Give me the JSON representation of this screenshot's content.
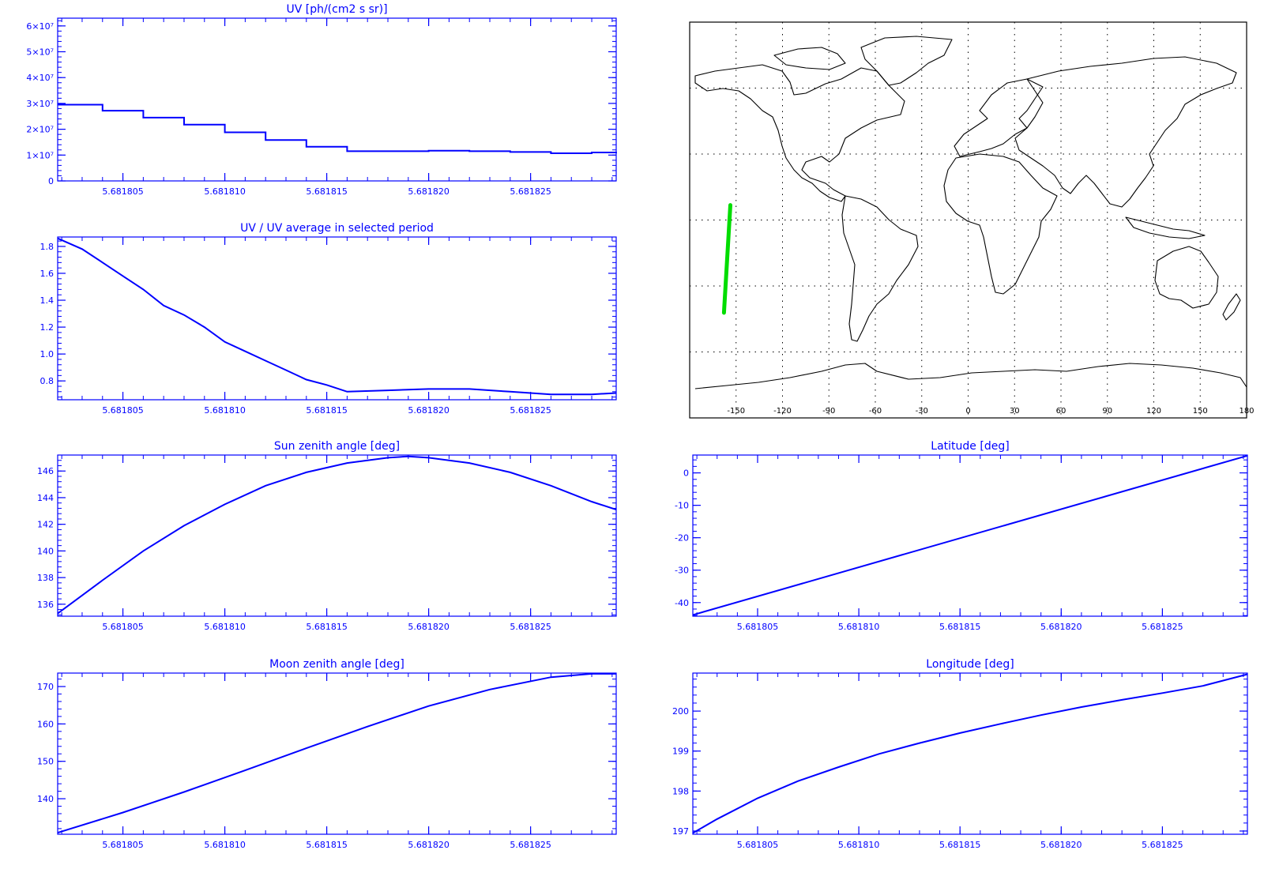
{
  "panels": [
    {
      "id": "uv",
      "title": "UV [ph/(cm2 s sr)]",
      "x_ticks": [
        "5.681805",
        "5.681810",
        "5.681815",
        "5.681820",
        "5.681825"
      ],
      "y_ticks": [
        "0",
        "1×10⁷",
        "2×10⁷",
        "3×10⁷",
        "4×10⁷",
        "5×10⁷",
        "6×10⁷"
      ]
    },
    {
      "id": "uv-ratio",
      "title": "UV / UV average in selected period",
      "x_ticks": [
        "5.681805",
        "5.681810",
        "5.681815",
        "5.681820",
        "5.681825"
      ],
      "y_ticks": [
        "0.8",
        "1.0",
        "1.2",
        "1.4",
        "1.6",
        "1.8"
      ]
    },
    {
      "id": "sun-zenith",
      "title": "Sun zenith angle [deg]",
      "x_ticks": [
        "5.681805",
        "5.681810",
        "5.681815",
        "5.681820",
        "5.681825"
      ],
      "y_ticks": [
        "136",
        "138",
        "140",
        "142",
        "144",
        "146"
      ]
    },
    {
      "id": "moon-zenith",
      "title": "Moon zenith angle [deg]",
      "x_ticks": [
        "5.681805",
        "5.681810",
        "5.681815",
        "5.681820",
        "5.681825"
      ],
      "y_ticks": [
        "140",
        "150",
        "160",
        "170"
      ]
    },
    {
      "id": "latitude",
      "title": "Latitude [deg]",
      "x_ticks": [
        "5.681805",
        "5.681810",
        "5.681815",
        "5.681820",
        "5.681825"
      ],
      "y_ticks": [
        "0",
        "-10",
        "-20",
        "-30",
        "-40"
      ]
    },
    {
      "id": "longitude",
      "title": "Longitude [deg]",
      "x_ticks": [
        "5.681805",
        "5.681810",
        "5.681815",
        "5.681820",
        "5.681825"
      ],
      "y_ticks": [
        "197",
        "198",
        "199",
        "200"
      ]
    }
  ],
  "map": {
    "lon_ticks": [
      "-150",
      "-120",
      "-90",
      "-60",
      "-30",
      "0",
      "30",
      "60",
      "90",
      "120",
      "150",
      "180"
    ],
    "track_color": "#00dd00",
    "coast_color": "#000000"
  },
  "colors": {
    "axes": "#0000ff",
    "series": "#0000ff"
  },
  "chart_data": [
    {
      "type": "line",
      "title": "UV [ph/(cm2 s sr)]",
      "xlim": [
        5.6818018,
        5.6818292
      ],
      "ylim": [
        0,
        63000000.0
      ],
      "x": [
        5.6818018,
        5.681804,
        5.681806,
        5.681808,
        5.68181,
        5.681812,
        5.681814,
        5.681816,
        5.681818,
        5.68182,
        5.681822,
        5.681824,
        5.681826,
        5.681828,
        5.6818292
      ],
      "y": [
        29500000.0,
        27200000.0,
        24500000.0,
        21800000.0,
        18800000.0,
        15800000.0,
        13200000.0,
        11500000.0,
        11500000.0,
        11700000.0,
        11500000.0,
        11200000.0,
        10700000.0,
        11000000.0,
        11200000.0
      ]
    },
    {
      "type": "line",
      "title": "UV / UV average in selected period",
      "xlim": [
        5.6818018,
        5.6818292
      ],
      "ylim": [
        0.66,
        1.87
      ],
      "x": [
        5.6818018,
        5.681803,
        5.681804,
        5.681805,
        5.681806,
        5.681807,
        5.681808,
        5.681809,
        5.68181,
        5.681811,
        5.681812,
        5.681813,
        5.681814,
        5.681815,
        5.681816,
        5.681818,
        5.68182,
        5.681822,
        5.681824,
        5.681826,
        5.681828,
        5.6818292
      ],
      "y": [
        1.86,
        1.78,
        1.68,
        1.58,
        1.48,
        1.36,
        1.29,
        1.2,
        1.09,
        1.02,
        0.95,
        0.88,
        0.81,
        0.77,
        0.72,
        0.73,
        0.74,
        0.74,
        0.72,
        0.7,
        0.7,
        0.71
      ]
    },
    {
      "type": "line",
      "title": "Sun zenith angle [deg]",
      "xlim": [
        5.6818018,
        5.6818292
      ],
      "ylim": [
        135.1,
        147.2
      ],
      "x": [
        5.6818018,
        5.681804,
        5.681806,
        5.681808,
        5.68181,
        5.681812,
        5.681814,
        5.681816,
        5.681818,
        5.681819,
        5.68182,
        5.681822,
        5.681824,
        5.681826,
        5.681828,
        5.6818292
      ],
      "y": [
        135.3,
        137.8,
        140.0,
        141.9,
        143.5,
        144.9,
        145.9,
        146.6,
        147.0,
        147.1,
        147.0,
        146.6,
        145.9,
        144.9,
        143.7,
        143.1
      ]
    },
    {
      "type": "line",
      "title": "Moon zenith angle [deg]",
      "xlim": [
        5.6818018,
        5.6818292
      ],
      "ylim": [
        130.5,
        173.6
      ],
      "x": [
        5.6818018,
        5.681805,
        5.681808,
        5.681811,
        5.681814,
        5.681817,
        5.68182,
        5.681823,
        5.681826,
        5.681828,
        5.6818292
      ],
      "y": [
        130.9,
        136.3,
        141.8,
        147.6,
        153.5,
        159.3,
        164.8,
        169.2,
        172.5,
        173.4,
        173.4
      ]
    },
    {
      "type": "line",
      "title": "Latitude [deg]",
      "xlim": [
        5.6818018,
        5.6818292
      ],
      "ylim": [
        -44.2,
        5.5
      ],
      "x": [
        5.6818018,
        5.6818292
      ],
      "y": [
        -43.8,
        5.3
      ]
    },
    {
      "type": "line",
      "title": "Longitude [deg]",
      "xlim": [
        5.6818018,
        5.6818292
      ],
      "ylim": [
        196.92,
        200.95
      ],
      "x": [
        5.6818018,
        5.681803,
        5.681805,
        5.681807,
        5.681809,
        5.681811,
        5.681813,
        5.681815,
        5.681817,
        5.681819,
        5.681821,
        5.681823,
        5.681825,
        5.681827,
        5.6818292
      ],
      "y": [
        196.95,
        197.3,
        197.82,
        198.25,
        198.6,
        198.93,
        199.2,
        199.45,
        199.68,
        199.9,
        200.1,
        200.28,
        200.45,
        200.63,
        200.92
      ]
    }
  ]
}
